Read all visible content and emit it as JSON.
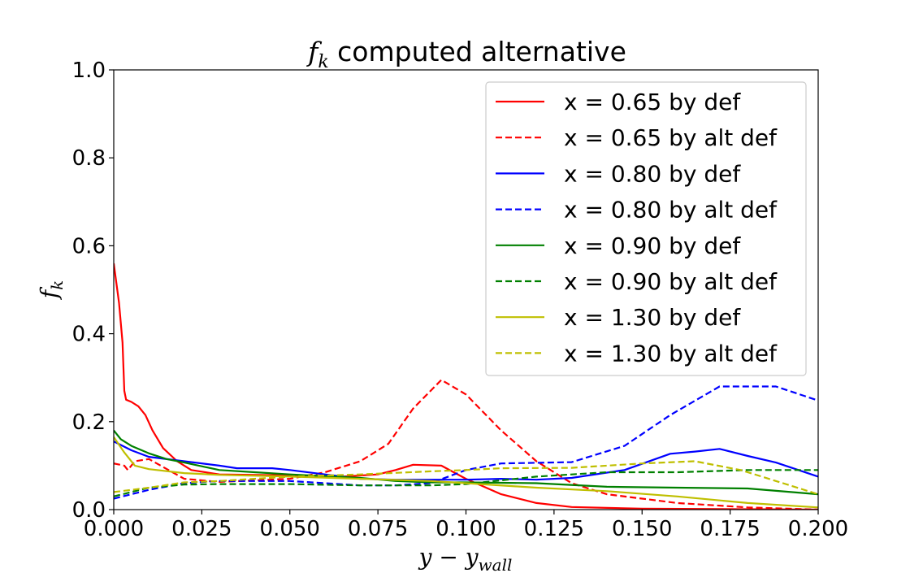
{
  "chart_data": {
    "type": "line",
    "title": {
      "main": "f",
      "sub": "k",
      "rest": " computed alternative"
    },
    "xlabel": {
      "main": "y − y",
      "sub": "wall"
    },
    "ylabel": {
      "main": "f",
      "sub": "k"
    },
    "xlim": [
      0.0,
      0.2
    ],
    "ylim": [
      0.0,
      1.0
    ],
    "xticks": [
      0.0,
      0.025,
      0.05,
      0.075,
      0.1,
      0.125,
      0.15,
      0.175,
      0.2
    ],
    "xtick_labels": [
      "0.000",
      "0.025",
      "0.050",
      "0.075",
      "0.100",
      "0.125",
      "0.150",
      "0.175",
      "0.200"
    ],
    "yticks": [
      0.0,
      0.2,
      0.4,
      0.6,
      0.8,
      1.0
    ],
    "ytick_labels": [
      "0.0",
      "0.2",
      "0.4",
      "0.6",
      "0.8",
      "1.0"
    ],
    "grid": false,
    "legend_position": "top-right",
    "series": [
      {
        "name": "x = 0.65 by def",
        "color": "#ff0000",
        "dash": "solid",
        "points": [
          [
            0.0,
            0.56
          ],
          [
            0.0015,
            0.47
          ],
          [
            0.0025,
            0.38
          ],
          [
            0.003,
            0.27
          ],
          [
            0.0035,
            0.25
          ],
          [
            0.005,
            0.245
          ],
          [
            0.007,
            0.235
          ],
          [
            0.009,
            0.215
          ],
          [
            0.011,
            0.18
          ],
          [
            0.014,
            0.14
          ],
          [
            0.018,
            0.11
          ],
          [
            0.022,
            0.09
          ],
          [
            0.03,
            0.08
          ],
          [
            0.05,
            0.078
          ],
          [
            0.065,
            0.075
          ],
          [
            0.075,
            0.08
          ],
          [
            0.08,
            0.09
          ],
          [
            0.085,
            0.102
          ],
          [
            0.093,
            0.1
          ],
          [
            0.1,
            0.07
          ],
          [
            0.11,
            0.035
          ],
          [
            0.12,
            0.015
          ],
          [
            0.13,
            0.006
          ],
          [
            0.15,
            0.002
          ],
          [
            0.2,
            0.0
          ]
        ]
      },
      {
        "name": "x = 0.65 by alt def",
        "color": "#ff0000",
        "dash": "dashed",
        "points": [
          [
            0.0,
            0.105
          ],
          [
            0.003,
            0.1
          ],
          [
            0.004,
            0.09
          ],
          [
            0.006,
            0.11
          ],
          [
            0.01,
            0.115
          ],
          [
            0.02,
            0.07
          ],
          [
            0.03,
            0.063
          ],
          [
            0.05,
            0.07
          ],
          [
            0.06,
            0.085
          ],
          [
            0.07,
            0.11
          ],
          [
            0.078,
            0.15
          ],
          [
            0.085,
            0.23
          ],
          [
            0.093,
            0.295
          ],
          [
            0.1,
            0.262
          ],
          [
            0.11,
            0.18
          ],
          [
            0.12,
            0.11
          ],
          [
            0.13,
            0.06
          ],
          [
            0.14,
            0.035
          ],
          [
            0.16,
            0.015
          ],
          [
            0.18,
            0.005
          ],
          [
            0.2,
            0.0
          ]
        ]
      },
      {
        "name": "x = 0.80 by def",
        "color": "#0000ff",
        "dash": "solid",
        "points": [
          [
            0.0,
            0.155
          ],
          [
            0.005,
            0.135
          ],
          [
            0.01,
            0.12
          ],
          [
            0.02,
            0.11
          ],
          [
            0.03,
            0.1
          ],
          [
            0.035,
            0.094
          ],
          [
            0.045,
            0.094
          ],
          [
            0.05,
            0.09
          ],
          [
            0.06,
            0.08
          ],
          [
            0.07,
            0.07
          ],
          [
            0.08,
            0.068
          ],
          [
            0.1,
            0.068
          ],
          [
            0.11,
            0.07
          ],
          [
            0.12,
            0.068
          ],
          [
            0.13,
            0.072
          ],
          [
            0.145,
            0.09
          ],
          [
            0.158,
            0.127
          ],
          [
            0.165,
            0.132
          ],
          [
            0.172,
            0.138
          ],
          [
            0.18,
            0.122
          ],
          [
            0.188,
            0.107
          ],
          [
            0.2,
            0.075
          ]
        ]
      },
      {
        "name": "x = 0.80 by alt def",
        "color": "#0000ff",
        "dash": "dashed",
        "points": [
          [
            0.0,
            0.025
          ],
          [
            0.01,
            0.045
          ],
          [
            0.02,
            0.06
          ],
          [
            0.03,
            0.065
          ],
          [
            0.05,
            0.065
          ],
          [
            0.06,
            0.06
          ],
          [
            0.07,
            0.055
          ],
          [
            0.08,
            0.055
          ],
          [
            0.09,
            0.06
          ],
          [
            0.1,
            0.09
          ],
          [
            0.11,
            0.105
          ],
          [
            0.13,
            0.108
          ],
          [
            0.145,
            0.145
          ],
          [
            0.158,
            0.215
          ],
          [
            0.172,
            0.28
          ],
          [
            0.188,
            0.28
          ],
          [
            0.2,
            0.248
          ]
        ]
      },
      {
        "name": "x = 0.90 by def",
        "color": "#008000",
        "dash": "solid",
        "points": [
          [
            0.0,
            0.18
          ],
          [
            0.002,
            0.16
          ],
          [
            0.005,
            0.145
          ],
          [
            0.01,
            0.128
          ],
          [
            0.015,
            0.115
          ],
          [
            0.02,
            0.107
          ],
          [
            0.03,
            0.09
          ],
          [
            0.04,
            0.085
          ],
          [
            0.05,
            0.08
          ],
          [
            0.07,
            0.072
          ],
          [
            0.08,
            0.065
          ],
          [
            0.09,
            0.062
          ],
          [
            0.1,
            0.062
          ],
          [
            0.12,
            0.06
          ],
          [
            0.14,
            0.052
          ],
          [
            0.16,
            0.05
          ],
          [
            0.18,
            0.048
          ],
          [
            0.2,
            0.035
          ]
        ]
      },
      {
        "name": "x = 0.90 by alt def",
        "color": "#008000",
        "dash": "dashed",
        "points": [
          [
            0.0,
            0.03
          ],
          [
            0.01,
            0.05
          ],
          [
            0.02,
            0.057
          ],
          [
            0.03,
            0.058
          ],
          [
            0.05,
            0.058
          ],
          [
            0.07,
            0.055
          ],
          [
            0.09,
            0.055
          ],
          [
            0.1,
            0.058
          ],
          [
            0.12,
            0.075
          ],
          [
            0.14,
            0.085
          ],
          [
            0.16,
            0.085
          ],
          [
            0.18,
            0.09
          ],
          [
            0.2,
            0.09
          ]
        ]
      },
      {
        "name": "x = 1.30 by def",
        "color": "#bfbf00",
        "dash": "solid",
        "points": [
          [
            0.0,
            0.165
          ],
          [
            0.003,
            0.13
          ],
          [
            0.006,
            0.1
          ],
          [
            0.01,
            0.092
          ],
          [
            0.02,
            0.083
          ],
          [
            0.03,
            0.079
          ],
          [
            0.04,
            0.077
          ],
          [
            0.05,
            0.075
          ],
          [
            0.07,
            0.07
          ],
          [
            0.09,
            0.065
          ],
          [
            0.1,
            0.06
          ],
          [
            0.12,
            0.05
          ],
          [
            0.14,
            0.042
          ],
          [
            0.16,
            0.03
          ],
          [
            0.18,
            0.015
          ],
          [
            0.2,
            0.005
          ]
        ]
      },
      {
        "name": "x = 1.30 by alt def",
        "color": "#bfbf00",
        "dash": "dashed",
        "points": [
          [
            0.0,
            0.04
          ],
          [
            0.01,
            0.05
          ],
          [
            0.02,
            0.062
          ],
          [
            0.03,
            0.065
          ],
          [
            0.05,
            0.075
          ],
          [
            0.07,
            0.08
          ],
          [
            0.09,
            0.087
          ],
          [
            0.1,
            0.09
          ],
          [
            0.11,
            0.094
          ],
          [
            0.13,
            0.095
          ],
          [
            0.15,
            0.105
          ],
          [
            0.165,
            0.11
          ],
          [
            0.178,
            0.09
          ],
          [
            0.19,
            0.06
          ],
          [
            0.2,
            0.035
          ]
        ]
      }
    ]
  }
}
